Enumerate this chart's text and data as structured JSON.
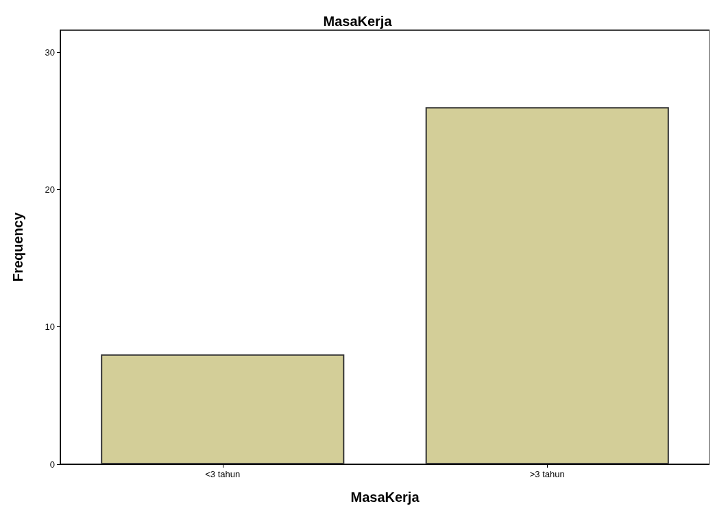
{
  "chart_data": {
    "type": "bar",
    "title": "MasaKerja",
    "xlabel": "MasaKerja",
    "ylabel": "Frequency",
    "categories": [
      "<3 tahun",
      ">3 tahun"
    ],
    "values": [
      8,
      26
    ],
    "color": "#d3ce98",
    "ylim": [
      0,
      31.6
    ],
    "yticks": [
      0,
      10,
      20,
      30
    ],
    "grid": false
  }
}
